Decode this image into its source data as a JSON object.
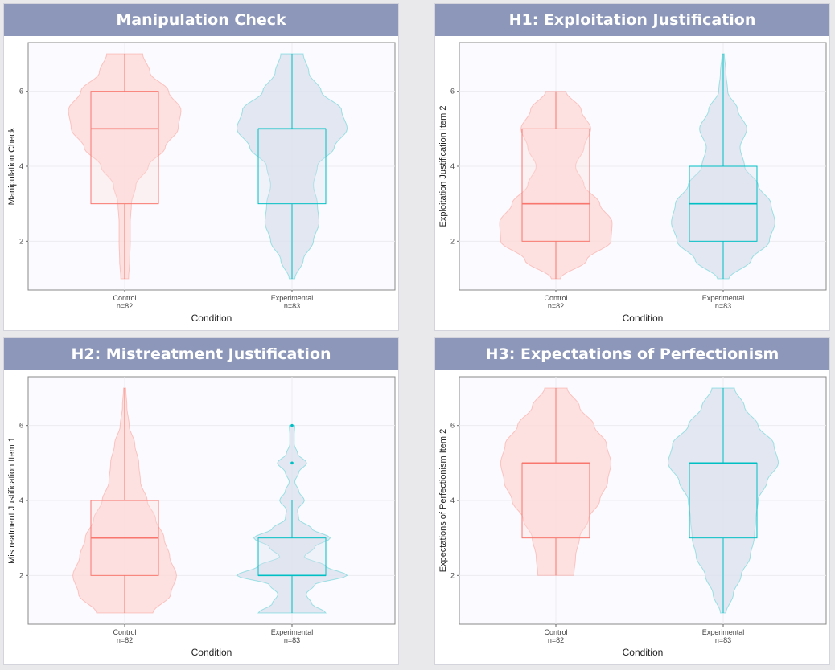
{
  "colors": {
    "control_line": "#f8766d",
    "control_fill": "#fbdcda",
    "experimental_line": "#00bfc4",
    "experimental_fill": "#dde3ee",
    "banner": "#8d97b9",
    "plot_bg": "#fbfbff",
    "grid": "#ebebf0"
  },
  "chart_data": [
    {
      "type": "violin",
      "title": "Manipulation Check",
      "xlabel": "Condition",
      "ylabel": "Manipulation Check",
      "ylim": [
        0.7,
        7.3
      ],
      "yticks": [
        2,
        4,
        6
      ],
      "grid": true,
      "categories": [
        {
          "label": "Control",
          "n": "n=82",
          "min": 1,
          "q1": 3,
          "median": 5,
          "q3": 6,
          "max": 7,
          "density": [
            [
              1,
              0.07
            ],
            [
              1.5,
              0.09
            ],
            [
              2,
              0.1
            ],
            [
              2.5,
              0.1
            ],
            [
              3,
              0.12
            ],
            [
              3.5,
              0.2
            ],
            [
              4,
              0.42
            ],
            [
              4.5,
              0.72
            ],
            [
              5,
              0.95
            ],
            [
              5.5,
              1.0
            ],
            [
              6,
              0.78
            ],
            [
              6.5,
              0.45
            ],
            [
              7,
              0.32
            ]
          ],
          "outliers": []
        },
        {
          "label": "Experimental",
          "n": "n=83",
          "min": 1,
          "q1": 3,
          "median": 5,
          "q3": 5,
          "max": 7,
          "density": [
            [
              1,
              0.05
            ],
            [
              1.5,
              0.2
            ],
            [
              2,
              0.38
            ],
            [
              2.5,
              0.48
            ],
            [
              3,
              0.45
            ],
            [
              3.5,
              0.38
            ],
            [
              4,
              0.45
            ],
            [
              4.5,
              0.75
            ],
            [
              5,
              0.98
            ],
            [
              5.5,
              0.88
            ],
            [
              6,
              0.52
            ],
            [
              6.5,
              0.3
            ],
            [
              7,
              0.2
            ]
          ],
          "outliers": []
        }
      ]
    },
    {
      "type": "violin",
      "title": "H1: Exploitation Justification",
      "xlabel": "Condition",
      "ylabel": "Exploitation Justification Item 2",
      "ylim": [
        0.7,
        7.3
      ],
      "yticks": [
        2,
        4,
        6
      ],
      "grid": true,
      "categories": [
        {
          "label": "Control",
          "n": "n=82",
          "min": 1,
          "q1": 2,
          "median": 3,
          "q3": 5,
          "max": 6,
          "density": [
            [
              1,
              0.08
            ],
            [
              1.5,
              0.55
            ],
            [
              2,
              0.98
            ],
            [
              2.5,
              1.0
            ],
            [
              3,
              0.78
            ],
            [
              3.5,
              0.5
            ],
            [
              4,
              0.35
            ],
            [
              4.5,
              0.5
            ],
            [
              5,
              0.62
            ],
            [
              5.5,
              0.45
            ],
            [
              6,
              0.18
            ]
          ],
          "outliers": []
        },
        {
          "label": "Experimental",
          "n": "n=83",
          "min": 1,
          "q1": 2,
          "median": 3,
          "q3": 4,
          "max": 7,
          "density": [
            [
              1,
              0.1
            ],
            [
              1.5,
              0.5
            ],
            [
              2,
              0.82
            ],
            [
              2.5,
              0.92
            ],
            [
              3,
              0.85
            ],
            [
              3.5,
              0.62
            ],
            [
              4,
              0.38
            ],
            [
              4.5,
              0.3
            ],
            [
              5,
              0.42
            ],
            [
              5.5,
              0.26
            ],
            [
              6,
              0.08
            ],
            [
              6.5,
              0.05
            ],
            [
              7,
              0.02
            ]
          ],
          "outliers": []
        }
      ]
    },
    {
      "type": "violin",
      "title": "H2: Mistreatment Justification",
      "xlabel": "Condition",
      "ylabel": "Mistreatment Justification Item 1",
      "ylim": [
        0.7,
        7.3
      ],
      "yticks": [
        2,
        4,
        6
      ],
      "grid": true,
      "categories": [
        {
          "label": "Control",
          "n": "n=82",
          "min": 1,
          "q1": 2,
          "median": 3,
          "q3": 4,
          "max": 7,
          "density": [
            [
              1,
              0.5
            ],
            [
              1.5,
              0.82
            ],
            [
              2,
              0.92
            ],
            [
              2.5,
              0.8
            ],
            [
              3,
              0.7
            ],
            [
              3.5,
              0.55
            ],
            [
              4,
              0.4
            ],
            [
              4.5,
              0.28
            ],
            [
              5,
              0.25
            ],
            [
              5.5,
              0.18
            ],
            [
              6,
              0.08
            ],
            [
              6.5,
              0.04
            ],
            [
              7,
              0.02
            ]
          ],
          "outliers": []
        },
        {
          "label": "Experimental",
          "n": "n=83",
          "min": 1,
          "q1": 2,
          "median": 2,
          "q3": 3,
          "max": 4,
          "density": [
            [
              1,
              0.6
            ],
            [
              1.25,
              0.35
            ],
            [
              1.5,
              0.25
            ],
            [
              1.75,
              0.4
            ],
            [
              2,
              0.98
            ],
            [
              2.25,
              0.6
            ],
            [
              2.5,
              0.22
            ],
            [
              2.75,
              0.4
            ],
            [
              3,
              0.68
            ],
            [
              3.25,
              0.35
            ],
            [
              3.5,
              0.12
            ],
            [
              3.75,
              0.1
            ],
            [
              4,
              0.22
            ],
            [
              4.25,
              0.12
            ],
            [
              4.5,
              0.05
            ],
            [
              4.75,
              0.12
            ],
            [
              5,
              0.26
            ],
            [
              5.25,
              0.1
            ],
            [
              5.5,
              0.04
            ],
            [
              5.75,
              0.04
            ],
            [
              6,
              0.05
            ]
          ],
          "outliers": [
            5,
            6
          ]
        }
      ]
    },
    {
      "type": "violin",
      "title": "H3: Expectations of Perfectionism",
      "xlabel": "Condition",
      "ylabel": "Expectations of Perfectionism Item 2",
      "ylim": [
        0.7,
        7.3
      ],
      "yticks": [
        2,
        4,
        6
      ],
      "grid": true,
      "categories": [
        {
          "label": "Control",
          "n": "n=82",
          "min": 2,
          "q1": 3,
          "median": 5,
          "q3": 5,
          "max": 7,
          "density": [
            [
              2,
              0.32
            ],
            [
              2.5,
              0.35
            ],
            [
              3,
              0.42
            ],
            [
              3.5,
              0.58
            ],
            [
              4,
              0.78
            ],
            [
              4.5,
              0.92
            ],
            [
              5,
              0.98
            ],
            [
              5.5,
              0.9
            ],
            [
              6,
              0.68
            ],
            [
              6.5,
              0.42
            ],
            [
              7,
              0.2
            ]
          ],
          "outliers": []
        },
        {
          "label": "Experimental",
          "n": "n=83",
          "min": 1,
          "q1": 3,
          "median": 5,
          "q3": 5,
          "max": 7,
          "density": [
            [
              1,
              0.05
            ],
            [
              1.5,
              0.18
            ],
            [
              2,
              0.32
            ],
            [
              2.5,
              0.48
            ],
            [
              3,
              0.55
            ],
            [
              3.5,
              0.58
            ],
            [
              4,
              0.62
            ],
            [
              4.5,
              0.78
            ],
            [
              5,
              0.98
            ],
            [
              5.5,
              0.9
            ],
            [
              6,
              0.62
            ],
            [
              6.5,
              0.38
            ],
            [
              7,
              0.2
            ]
          ],
          "outliers": []
        }
      ]
    }
  ]
}
